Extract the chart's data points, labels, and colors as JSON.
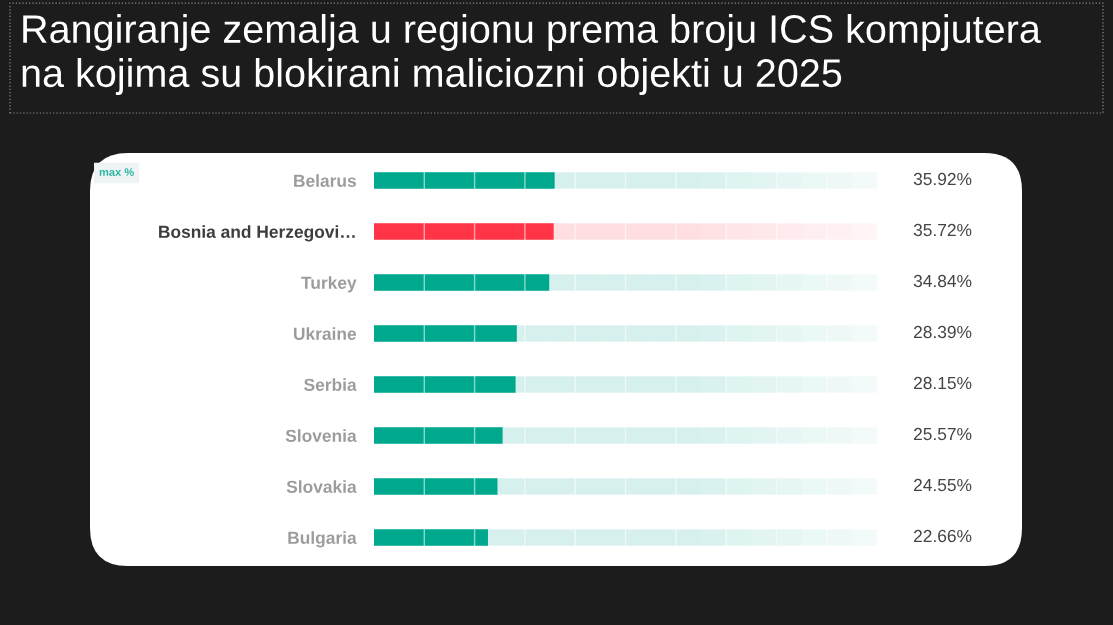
{
  "chart_data": {
    "type": "bar",
    "orientation": "horizontal",
    "title": "Rangiranje zemalja u regionu prema broju ICS kompjutera na kojima su blokirani maliciozni objekti u 2025",
    "categories": [
      "Belarus",
      "Bosnia and Herzegovi…",
      "Turkey",
      "Ukraine",
      "Serbia",
      "Slovenia",
      "Slovakia",
      "Bulgaria"
    ],
    "values": [
      35.92,
      35.72,
      34.84,
      28.39,
      28.15,
      25.57,
      24.55,
      22.66
    ],
    "colors": [
      "#00a88e",
      "#ff3447",
      "#00a88e",
      "#00a88e",
      "#00a88e",
      "#00a88e",
      "#00a88e",
      "#00a88e"
    ],
    "value_labels": [
      "35.92%",
      "35.72%",
      "34.84%",
      "28.39%",
      "28.15%",
      "25.57%",
      "24.55%",
      "22.66%"
    ],
    "xlim": [
      0,
      100
    ],
    "xticks": [
      {
        "value": 10,
        "label": null
      },
      {
        "value": 20,
        "label": null
      },
      {
        "value": 30,
        "label": null
      },
      {
        "value": 40,
        "label": null
      },
      {
        "value": 50,
        "label": null
      },
      {
        "value": 60,
        "label": null
      },
      {
        "value": 70,
        "label": null
      },
      {
        "value": 80,
        "label": null
      },
      {
        "value": 90,
        "label": null
      }
    ],
    "grid": "x",
    "tick_labels": "y",
    "annotations": [
      "max %"
    ]
  }
}
